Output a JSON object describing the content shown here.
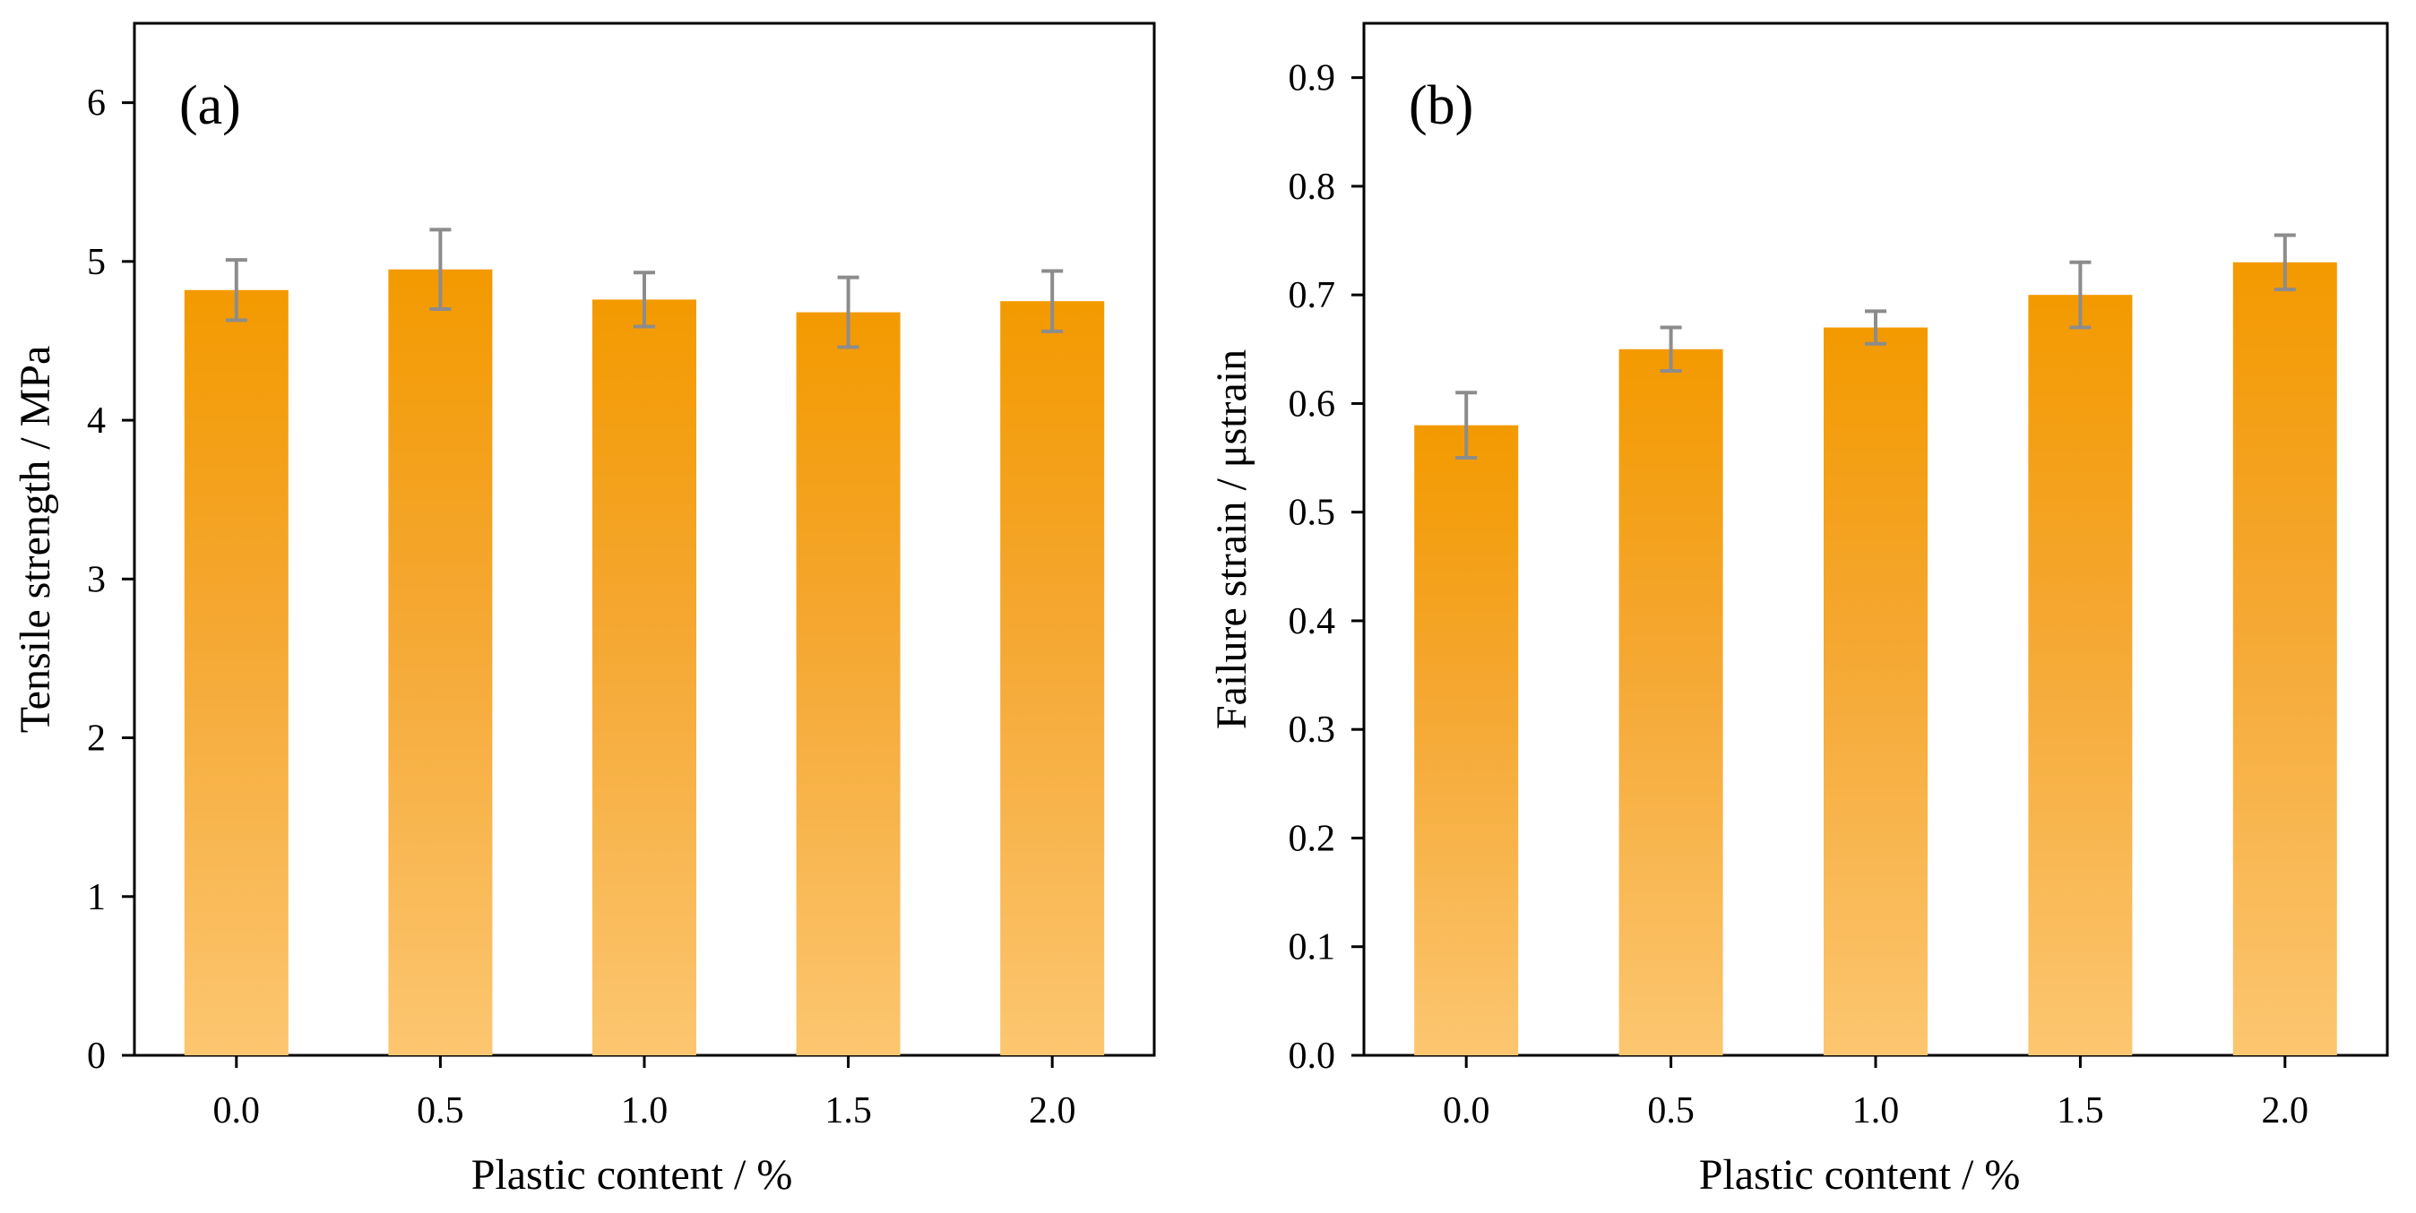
{
  "colors": {
    "bar_top": "#f39a00",
    "bar_mid": "#f5a833",
    "bar_bottom": "#fcc670",
    "error_bar": "#8c8c8c",
    "axis": "#000000"
  },
  "chart_data": [
    {
      "type": "bar",
      "panel_label": "(a)",
      "categories": [
        "0.0",
        "0.5",
        "1.0",
        "1.5",
        "2.0"
      ],
      "values": [
        4.82,
        4.95,
        4.76,
        4.68,
        4.75
      ],
      "errors": [
        0.19,
        0.25,
        0.17,
        0.22,
        0.19
      ],
      "xlabel": "Plastic content / %",
      "ylabel": "Tensile strength / MPa",
      "ylim": [
        0,
        6.5
      ],
      "yticks": [
        0,
        1,
        2,
        3,
        4,
        5,
        6
      ],
      "ytick_labels": [
        "0",
        "1",
        "2",
        "3",
        "4",
        "5",
        "6"
      ],
      "grid": false,
      "legend": "none"
    },
    {
      "type": "bar",
      "panel_label": "(b)",
      "categories": [
        "0.0",
        "0.5",
        "1.0",
        "1.5",
        "2.0"
      ],
      "values": [
        0.58,
        0.65,
        0.67,
        0.7,
        0.73
      ],
      "errors": [
        0.03,
        0.02,
        0.015,
        0.03,
        0.025
      ],
      "xlabel": "Plastic content / %",
      "ylabel": "Failure strain / μstrain",
      "ylim": [
        0,
        0.95
      ],
      "yticks": [
        0,
        0.1,
        0.2,
        0.3,
        0.4,
        0.5,
        0.6,
        0.7,
        0.8,
        0.9
      ],
      "ytick_labels": [
        "0.0",
        "0.1",
        "0.2",
        "0.3",
        "0.4",
        "0.5",
        "0.6",
        "0.7",
        "0.8",
        "0.9"
      ],
      "grid": false,
      "legend": "none"
    }
  ]
}
